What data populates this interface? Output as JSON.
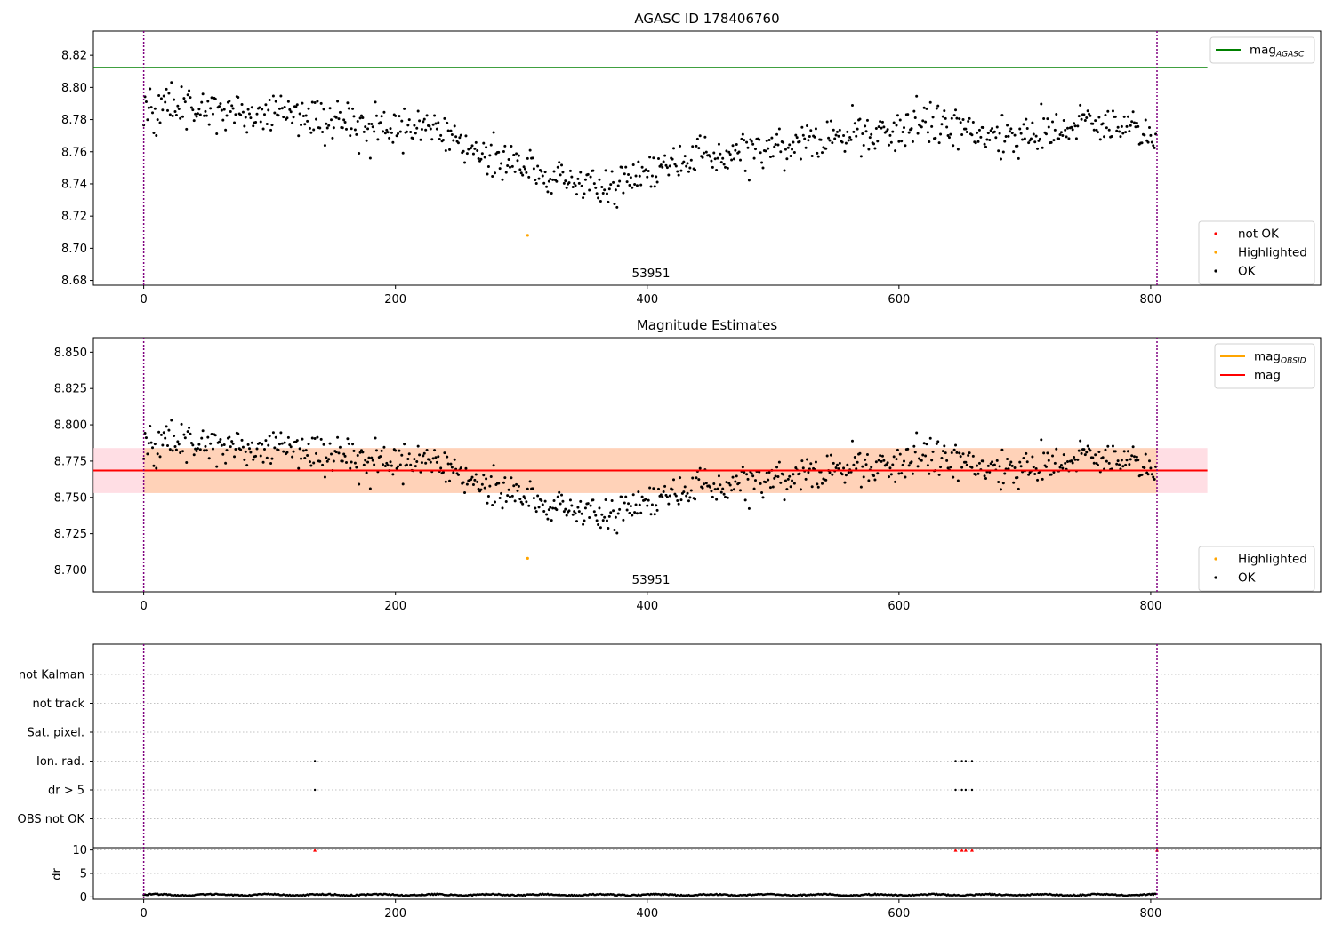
{
  "colors": {
    "ok": "#000000",
    "not_ok": "#ff0000",
    "highlighted": "#ffa500",
    "mag_agasc": "#008000",
    "mag_obsid": "#ffa500",
    "mag": "#ff0000",
    "obs_band": "#ffd0b0",
    "mag_band": "#ffd0d8",
    "obs_boundary": "#800080",
    "grid": "#b0b0b0"
  },
  "chart_data": [
    {
      "type": "scatter",
      "title": "AGASC ID 178406760",
      "xlim": [
        -40,
        935
      ],
      "ylim": [
        8.677,
        8.835
      ],
      "xticks": [
        0,
        200,
        400,
        600,
        800
      ],
      "xtick_labels": [
        "0",
        "200",
        "400",
        "600",
        "800"
      ],
      "yticks": [
        8.68,
        8.7,
        8.72,
        8.74,
        8.76,
        8.78,
        8.8,
        8.82
      ],
      "ytick_labels": [
        "8.68",
        "8.70",
        "8.72",
        "8.74",
        "8.76",
        "8.78",
        "8.80",
        "8.82"
      ],
      "obs_boundaries": [
        0,
        805
      ],
      "obsid_label": {
        "text": "53951",
        "x": 402,
        "y": 8.684
      },
      "hlines": [
        {
          "name": "mag_agasc",
          "y": 8.8123,
          "x_range": [
            -40,
            845
          ]
        }
      ],
      "highlighted_points": [
        {
          "x": 305,
          "y": 8.708
        }
      ],
      "ok_series": {
        "n": 805,
        "trend_x": [
          0,
          40,
          80,
          120,
          160,
          200,
          240,
          270,
          300,
          330,
          350,
          370,
          400,
          440,
          480,
          520,
          560,
          600,
          640,
          680,
          720,
          750,
          780,
          805
        ],
        "trend_y": [
          8.785,
          8.788,
          8.784,
          8.784,
          8.777,
          8.777,
          8.77,
          8.76,
          8.749,
          8.743,
          8.738,
          8.737,
          8.745,
          8.76,
          8.76,
          8.763,
          8.77,
          8.775,
          8.777,
          8.768,
          8.77,
          8.78,
          8.772,
          8.77
        ],
        "scatter_sd": 0.0065
      },
      "legends": [
        {
          "placement": "top-right",
          "items": [
            {
              "label": "mag",
              "subscript": "AGASC",
              "kind": "line",
              "color_key": "mag_agasc"
            }
          ]
        },
        {
          "placement": "bottom-right",
          "items": [
            {
              "label": "not OK",
              "kind": "dot",
              "color_key": "not_ok"
            },
            {
              "label": "Highlighted",
              "kind": "dot",
              "color_key": "highlighted"
            },
            {
              "label": "OK",
              "kind": "dot",
              "color_key": "ok"
            }
          ]
        }
      ]
    },
    {
      "type": "scatter",
      "title": "Magnitude Estimates",
      "xlim": [
        -40,
        935
      ],
      "ylim": [
        8.685,
        8.86
      ],
      "xticks": [
        0,
        200,
        400,
        600,
        800
      ],
      "xtick_labels": [
        "0",
        "200",
        "400",
        "600",
        "800"
      ],
      "yticks": [
        8.7,
        8.725,
        8.75,
        8.775,
        8.8,
        8.825,
        8.85
      ],
      "ytick_labels": [
        "8.700",
        "8.725",
        "8.750",
        "8.775",
        "8.800",
        "8.825",
        "8.850"
      ],
      "obs_boundaries": [
        0,
        805
      ],
      "obsid_label": {
        "text": "53951",
        "x": 402,
        "y": 8.692
      },
      "mag_band": {
        "x_range": [
          -40,
          845
        ],
        "y_range": [
          8.753,
          8.784
        ]
      },
      "obs_band": {
        "x_range": [
          0,
          805
        ],
        "y_range": [
          8.753,
          8.784
        ]
      },
      "hlines": [
        {
          "name": "mag_obsid",
          "y": 8.7685,
          "x_range": [
            0,
            805
          ]
        },
        {
          "name": "mag",
          "y": 8.7685,
          "x_range": [
            -40,
            845
          ]
        }
      ],
      "highlighted_points": [
        {
          "x": 305,
          "y": 8.708
        }
      ],
      "legends": [
        {
          "placement": "top-right",
          "items": [
            {
              "label": "mag",
              "subscript": "OBSID",
              "kind": "line",
              "color_key": "mag_obsid"
            },
            {
              "label": "mag",
              "subscript": "",
              "kind": "line",
              "color_key": "mag"
            }
          ]
        },
        {
          "placement": "bottom-right",
          "items": [
            {
              "label": "Highlighted",
              "kind": "dot",
              "color_key": "highlighted"
            },
            {
              "label": "OK",
              "kind": "dot",
              "color_key": "ok"
            }
          ]
        }
      ]
    },
    {
      "type": "scatter",
      "title": "",
      "xlim": [
        -40,
        935
      ],
      "xticks": [
        0,
        200,
        400,
        600,
        800
      ],
      "xtick_labels": [
        "0",
        "200",
        "400",
        "600",
        "800"
      ],
      "obs_boundaries": [
        0,
        805
      ],
      "flag_categories": [
        "not Kalman",
        "not track",
        "Sat. pixel.",
        "Ion. rad.",
        "dr > 5",
        "OBS not OK"
      ],
      "flag_points": [
        {
          "category": "Ion. rad.",
          "x": [
            136,
            645,
            650,
            653,
            658
          ]
        },
        {
          "category": "dr > 5",
          "x": [
            136,
            645,
            650,
            653,
            658
          ]
        }
      ],
      "dr_panel": {
        "ylabel": "dr",
        "ylim": [
          -0.5,
          10.5
        ],
        "yticks": [
          0,
          5,
          10
        ],
        "ytick_labels": [
          "0",
          "5",
          "10"
        ],
        "typical_dr": 0.45,
        "clipped_markers": [
          {
            "x": 136,
            "y": 10
          },
          {
            "x": 645,
            "y": 10
          },
          {
            "x": 650,
            "y": 10
          },
          {
            "x": 653,
            "y": 10
          },
          {
            "x": 658,
            "y": 10
          },
          {
            "x": 805,
            "y": 10
          }
        ]
      }
    }
  ]
}
